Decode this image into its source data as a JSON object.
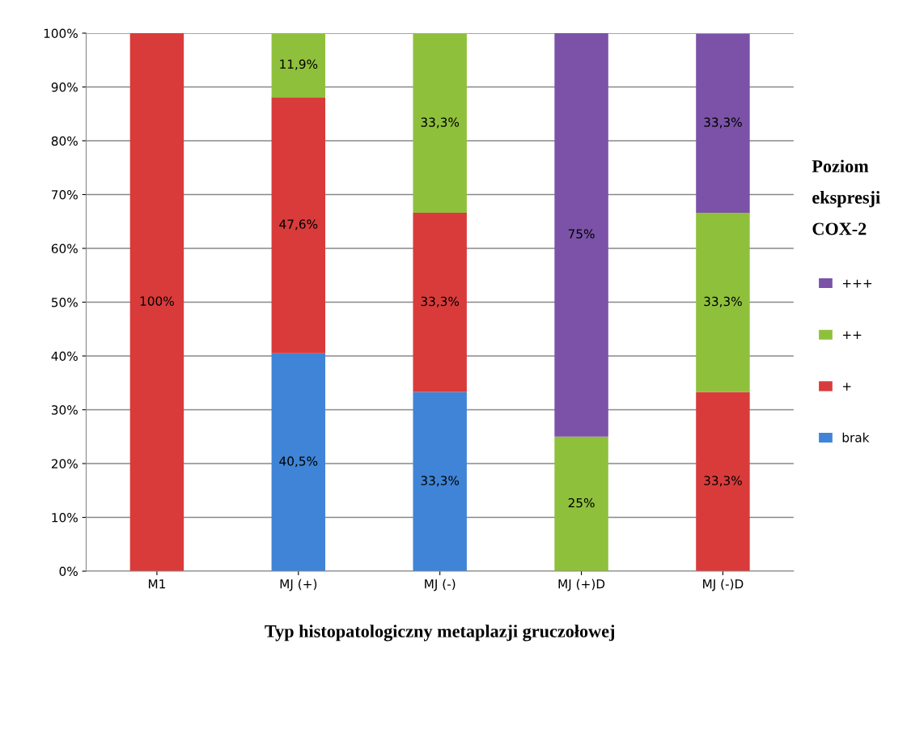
{
  "chart_data": {
    "type": "bar",
    "stacked": true,
    "xlabel": "Typ histopatologiczny metaplazji gruczołowej",
    "legend_title": "Poziom ekspresji COX-2",
    "legend": "right",
    "grid": "y",
    "categories": [
      "M1",
      "MJ (+)",
      "MJ (-)",
      "MJ (+)D",
      "MJ (-)D"
    ],
    "ylim": [
      0,
      100
    ],
    "yticks": [
      {
        "value": 0,
        "label": "0%"
      },
      {
        "value": 10,
        "label": "10%"
      },
      {
        "value": 20,
        "label": "20%"
      },
      {
        "value": 30,
        "label": "30%"
      },
      {
        "value": 40,
        "label": "40%"
      },
      {
        "value": 50,
        "label": "50%"
      },
      {
        "value": 60,
        "label": "60%"
      },
      {
        "value": 70,
        "label": "70%"
      },
      {
        "value": 80,
        "label": "80%"
      },
      {
        "value": 90,
        "label": "90%"
      },
      {
        "value": 100,
        "label": "100%"
      }
    ],
    "series": [
      {
        "name": "brak",
        "color": "#3f84d6",
        "values": [
          0,
          40.5,
          33.3,
          0,
          0
        ],
        "value_labels": [
          null,
          "40,5%",
          "33,3%",
          null,
          null
        ]
      },
      {
        "name": "+",
        "color": "#d93b3b",
        "values": [
          100,
          47.6,
          33.3,
          0,
          33.3
        ],
        "value_labels": [
          "100%",
          "47,6%",
          "33,3%",
          null,
          "33,3%"
        ]
      },
      {
        "name": "++",
        "color": "#8fc03c",
        "values": [
          0,
          11.9,
          33.3,
          25,
          33.3
        ],
        "value_labels": [
          null,
          "11,9%",
          "33,3%",
          "25%",
          "33,3%"
        ]
      },
      {
        "name": "+++",
        "color": "#7b52a8",
        "values": [
          0,
          0,
          0,
          75,
          33.3
        ],
        "value_labels": [
          null,
          null,
          null,
          "75%",
          "33,3%"
        ]
      }
    ]
  }
}
